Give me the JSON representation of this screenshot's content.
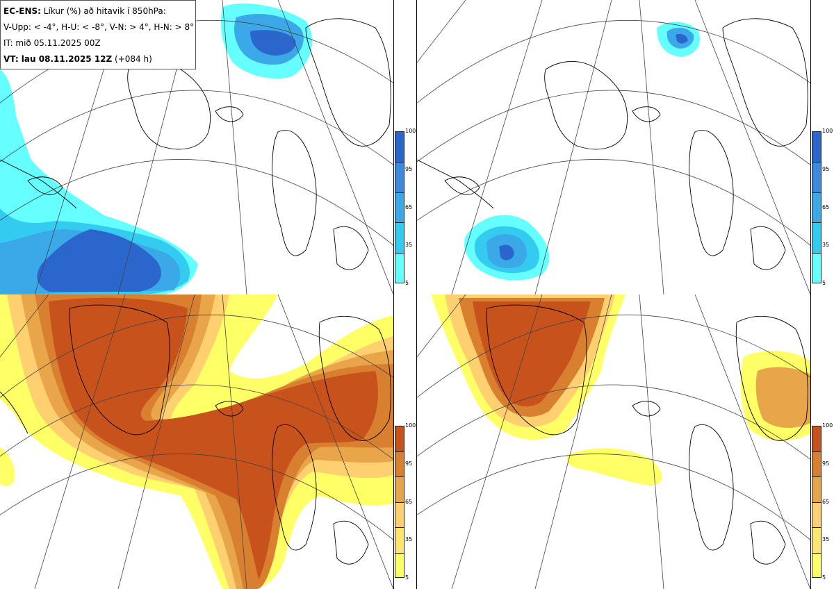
{
  "header": {
    "model": "EC-ENS:",
    "title": "Líkur (%) að hitavik í 850hPa:",
    "thresholds": "V-Upp: < -4°, H-U: < -8°, V-N: > 4°, H-N: > 8°",
    "initial_time": "IT: mið 05.11.2025 00Z",
    "valid_label": "VT: lau 08.11.2025 12Z",
    "lead": "(+084 h)"
  },
  "colors": {
    "cold_scale": [
      "#66ffff",
      "#33ccf0",
      "#3ba8e8",
      "#3b8ae0",
      "#2a66cc"
    ],
    "warm_scale": [
      "#ffff66",
      "#ffe66e",
      "#ffd070",
      "#e8a54a",
      "#d98030",
      "#c8521c"
    ],
    "coast": "#000000",
    "graticule": "#444444"
  },
  "legends": {
    "cold": {
      "ticks": [
        "100",
        "95",
        "65",
        "35",
        "5"
      ]
    },
    "warm": {
      "ticks": [
        "100",
        "95",
        "65",
        "35",
        "5"
      ]
    }
  },
  "panels": [
    {
      "id": "top-left",
      "variable": "cold-anomaly-below-minus-4"
    },
    {
      "id": "top-right",
      "variable": "cold-anomaly-below-minus-8"
    },
    {
      "id": "bottom-left",
      "variable": "warm-anomaly-above-4"
    },
    {
      "id": "bottom-right",
      "variable": "warm-anomaly-above-8"
    }
  ]
}
